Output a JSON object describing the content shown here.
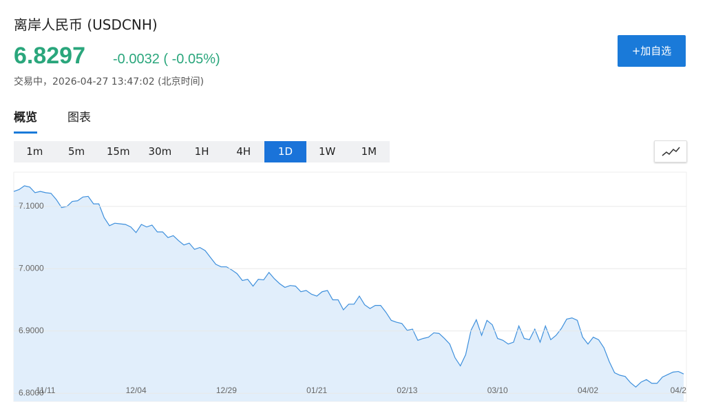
{
  "header": {
    "title": "离岸人民币 (USDCNH)",
    "price": "6.8297",
    "change": "-0.0032 ( -0.05%)",
    "status": "交易中，2026-04-27 13:47:02 (北京时间)"
  },
  "button": "+加自选",
  "tabs": [
    "概览",
    "图表"
  ],
  "active_tab": 0,
  "intervals": [
    "1m",
    "5m",
    "15m",
    "30m",
    "1H",
    "4H",
    "1D",
    "1W",
    "1M"
  ],
  "active_interval": 6,
  "chart_data": {
    "type": "area",
    "color": "#3d8fdc",
    "fill": "#e1eefb",
    "grid": true,
    "ylim": [
      6.787,
      7.155
    ],
    "yticks": [
      {
        "value": 6.8,
        "label": "6.8000"
      },
      {
        "value": 6.9,
        "label": "6.9000"
      },
      {
        "value": 7.0,
        "label": "7.0000"
      },
      {
        "value": 7.1,
        "label": "7.1000"
      }
    ],
    "categories": [
      null,
      null,
      null,
      null,
      null,
      null,
      "11/11",
      null,
      null,
      null,
      null,
      null,
      null,
      null,
      null,
      null,
      null,
      null,
      null,
      null,
      null,
      null,
      null,
      "12/04",
      null,
      null,
      null,
      null,
      null,
      null,
      null,
      null,
      null,
      null,
      null,
      null,
      null,
      null,
      null,
      null,
      "12/29",
      null,
      null,
      null,
      null,
      null,
      null,
      null,
      null,
      null,
      null,
      null,
      null,
      null,
      null,
      null,
      null,
      "01/21",
      null,
      null,
      null,
      null,
      null,
      null,
      null,
      null,
      null,
      null,
      null,
      null,
      null,
      null,
      null,
      null,
      "02/13",
      null,
      null,
      null,
      null,
      null,
      null,
      null,
      null,
      null,
      null,
      null,
      null,
      null,
      null,
      null,
      null,
      "03/10",
      null,
      null,
      null,
      null,
      null,
      null,
      null,
      null,
      null,
      null,
      null,
      null,
      null,
      null,
      null,
      null,
      "04/02",
      null,
      null,
      null,
      null,
      null,
      null,
      null,
      null,
      null,
      null,
      null,
      null,
      null,
      null,
      null,
      null,
      "04/2",
      null
    ],
    "values": [
      7.124,
      7.127,
      7.133,
      7.131,
      7.122,
      7.124,
      7.122,
      7.121,
      7.111,
      7.098,
      7.1,
      7.108,
      7.109,
      7.115,
      7.116,
      7.104,
      7.104,
      7.082,
      7.069,
      7.073,
      7.072,
      7.071,
      7.067,
      7.058,
      7.071,
      7.067,
      7.07,
      7.059,
      7.059,
      7.05,
      7.053,
      7.045,
      7.038,
      7.041,
      7.031,
      7.034,
      7.029,
      7.018,
      7.007,
      7.003,
      7.003,
      6.998,
      6.992,
      6.981,
      6.983,
      6.972,
      6.983,
      6.982,
      6.994,
      6.984,
      6.976,
      6.97,
      6.973,
      6.972,
      6.963,
      6.965,
      6.959,
      6.956,
      6.963,
      6.965,
      6.95,
      6.95,
      6.934,
      6.943,
      6.943,
      6.956,
      6.942,
      6.936,
      6.941,
      6.941,
      6.93,
      6.917,
      6.914,
      6.912,
      6.901,
      6.903,
      6.885,
      6.888,
      6.89,
      6.897,
      6.896,
      6.888,
      6.879,
      6.857,
      6.844,
      6.862,
      6.901,
      6.918,
      6.893,
      6.917,
      6.91,
      6.888,
      6.885,
      6.879,
      6.882,
      6.908,
      6.888,
      6.886,
      6.903,
      6.882,
      6.908,
      6.886,
      6.893,
      6.904,
      6.919,
      6.921,
      6.917,
      6.89,
      6.879,
      6.89,
      6.886,
      6.873,
      6.851,
      6.833,
      6.829,
      6.827,
      6.817,
      6.81,
      6.818,
      6.822,
      6.816,
      6.816,
      6.826,
      6.83,
      6.834,
      6.835,
      6.831
    ]
  }
}
